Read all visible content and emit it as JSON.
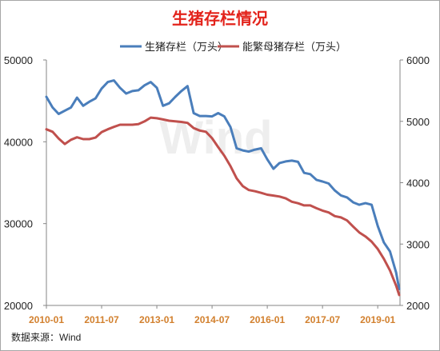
{
  "source": "数据来源：Wind",
  "watermark": "Wind",
  "colors": {
    "title": "#e3231b",
    "hog": "#4a7ebb",
    "sow": "#c0504d",
    "xtick": "#d2802e",
    "watermark": "#eeeeee"
  },
  "chart_data": {
    "type": "line",
    "title": "生猪存栏情况",
    "x": [
      "2010-01",
      "2010-03",
      "2010-05",
      "2010-07",
      "2010-09",
      "2010-11",
      "2011-01",
      "2011-03",
      "2011-05",
      "2011-07",
      "2011-09",
      "2011-11",
      "2012-01",
      "2012-03",
      "2012-05",
      "2012-07",
      "2012-09",
      "2012-11",
      "2013-01",
      "2013-03",
      "2013-05",
      "2013-07",
      "2013-09",
      "2013-11",
      "2014-01",
      "2014-03",
      "2014-05",
      "2014-07",
      "2014-09",
      "2014-11",
      "2015-01",
      "2015-03",
      "2015-05",
      "2015-07",
      "2015-09",
      "2015-11",
      "2016-01",
      "2016-03",
      "2016-05",
      "2016-07",
      "2016-09",
      "2016-11",
      "2017-01",
      "2017-03",
      "2017-05",
      "2017-07",
      "2017-09",
      "2017-11",
      "2018-01",
      "2018-03",
      "2018-05",
      "2018-07",
      "2018-09",
      "2018-11",
      "2019-01",
      "2019-03",
      "2019-05",
      "2019-07",
      "2019-08"
    ],
    "x_ticks": [
      "2010-01",
      "2011-07",
      "2013-01",
      "2014-07",
      "2016-01",
      "2017-07",
      "2019-01"
    ],
    "series": [
      {
        "name": "生猪存栏（万头）",
        "axis": "left",
        "color": "#4a7ebb",
        "values": [
          45500,
          44200,
          43400,
          43800,
          44200,
          45400,
          44400,
          44900,
          45300,
          46500,
          47300,
          47500,
          46600,
          45900,
          46200,
          46300,
          46900,
          47300,
          46600,
          44400,
          44700,
          45500,
          46200,
          46800,
          43500,
          43150,
          43150,
          43100,
          43500,
          43100,
          41800,
          39200,
          38950,
          38800,
          39050,
          39200,
          37850,
          36700,
          37400,
          37600,
          37700,
          37550,
          36200,
          36050,
          35350,
          35150,
          34900,
          34050,
          33450,
          33200,
          32600,
          32300,
          32500,
          32300,
          29700,
          27700,
          26600,
          24000,
          22000
        ]
      },
      {
        "name": "能繁母猪存栏（万头）",
        "axis": "right",
        "color": "#c0504d",
        "values": [
          4870,
          4830,
          4720,
          4630,
          4700,
          4740,
          4710,
          4710,
          4735,
          4825,
          4870,
          4910,
          4945,
          4945,
          4945,
          4955,
          5000,
          5060,
          5050,
          5030,
          5010,
          5000,
          4990,
          4975,
          4890,
          4850,
          4830,
          4725,
          4580,
          4440,
          4270,
          4070,
          3945,
          3880,
          3860,
          3835,
          3805,
          3790,
          3775,
          3745,
          3690,
          3665,
          3630,
          3630,
          3585,
          3545,
          3515,
          3455,
          3435,
          3385,
          3285,
          3190,
          3125,
          3040,
          2920,
          2760,
          2570,
          2320,
          2170
        ]
      }
    ],
    "ylim_left": [
      20000,
      50000
    ],
    "ylim_right": [
      2000,
      6000
    ],
    "yticks_left": [
      20000,
      30000,
      40000,
      50000
    ],
    "yticks_right": [
      2000,
      3000,
      4000,
      5000,
      6000
    ],
    "grid": false,
    "legend": "top"
  }
}
